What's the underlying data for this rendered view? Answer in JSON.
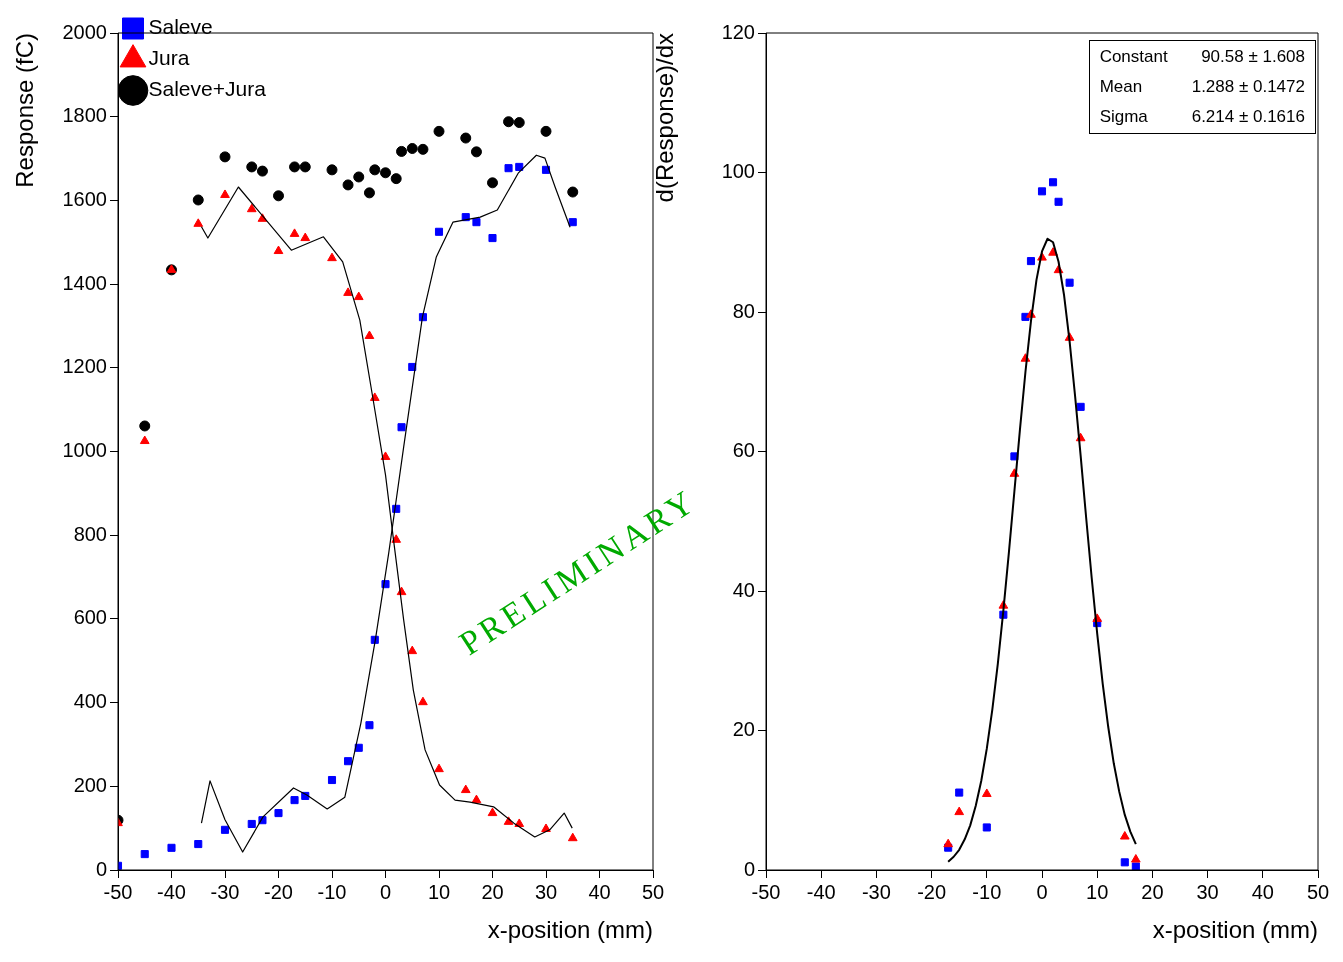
{
  "chart_data": [
    {
      "type": "scatter",
      "xlabel": "x-position (mm)",
      "ylabel": "Response (fC)",
      "xlim": [
        -50,
        50
      ],
      "xticks": [
        -50,
        -40,
        -30,
        -20,
        -10,
        0,
        10,
        20,
        30,
        40,
        50
      ],
      "ylim": [
        0,
        2000
      ],
      "yticks": [
        0,
        200,
        400,
        600,
        800,
        1000,
        1200,
        1400,
        1600,
        1800,
        2000
      ],
      "grid": false,
      "legend": "top left",
      "annotations": [
        "PRELIMINARY"
      ],
      "x": [
        -50,
        -45,
        -40,
        -35,
        -30,
        -25,
        -23,
        -20,
        -17,
        -15,
        -10,
        -7,
        -5,
        -3,
        -2,
        0,
        2,
        3,
        5,
        7,
        10,
        15,
        17,
        20,
        23,
        25,
        30,
        35
      ],
      "series": [
        {
          "name": "Saleve",
          "color": "#0000ff",
          "marker": "square",
          "values": [
            10,
            38,
            53,
            62,
            96,
            110,
            119,
            136,
            167,
            177,
            215,
            260,
            292,
            346,
            550,
            683,
            863,
            1058,
            1202,
            1321,
            1525,
            1560,
            1548,
            1510,
            1677,
            1680,
            1673,
            1548
          ]
        },
        {
          "name": "Jura",
          "color": "#ff0000",
          "marker": "triangle",
          "values": [
            112,
            1025,
            1434,
            1544,
            1613,
            1579,
            1556,
            1479,
            1520,
            1510,
            1462,
            1379,
            1369,
            1276,
            1128,
            987,
            789,
            664,
            523,
            401,
            241,
            191,
            167,
            136,
            115,
            110,
            98,
            76
          ]
        },
        {
          "name": "Saleve+Jura",
          "color": "#000000",
          "marker": "circle",
          "values": [
            119,
            1061,
            1434,
            1601,
            1704,
            1680,
            1670,
            1611,
            1680,
            1680,
            1673,
            1637,
            1656,
            1618,
            1673,
            1666,
            1652,
            1717,
            1724,
            1722,
            1765,
            1749,
            1716,
            1642,
            1788,
            1786,
            1765,
            1620
          ]
        },
        {
          "type": "line",
          "color": "#000000",
          "marker": "none",
          "line_style": "solid",
          "x": [
            -34.4,
            -32.8,
            -30,
            -26.7,
            -22.9,
            -17.2,
            -14.7,
            -10.9,
            -7.6,
            -4.6,
            -1.9,
            0.6,
            3.4,
            6.9,
            9.5,
            12.6,
            17.7,
            20.9,
            24.8,
            28.2,
            29.8,
            31.7,
            34.5
          ],
          "values": [
            112,
            213,
            120,
            43,
            127,
            196,
            179,
            146,
            174,
            351,
            550,
            757,
            1011,
            1321,
            1465,
            1548,
            1560,
            1577,
            1665,
            1708,
            1701,
            1632,
            1536
          ]
        },
        {
          "type": "line",
          "color": "#000000",
          "marker": "none",
          "line_style": "solid",
          "x": [
            -34.4,
            -33.2,
            -27.5,
            -17.6,
            -11.6,
            -8,
            -4.8,
            -2.3,
            0,
            1.5,
            3.4,
            5.2,
            7.4,
            10.1,
            13,
            15.8,
            20.2,
            24,
            27.9,
            30.7,
            33.4,
            34.9
          ],
          "values": [
            1537,
            1510,
            1632,
            1481,
            1513,
            1453,
            1314,
            1123,
            944,
            789,
            597,
            430,
            287,
            203,
            167,
            162,
            151,
            112,
            79,
            96,
            136,
            100
          ]
        }
      ]
    },
    {
      "type": "scatter",
      "xlabel": "x-position (mm)",
      "ylabel": "d(Response)/dx",
      "xlim": [
        -50,
        50
      ],
      "xticks": [
        -50,
        -40,
        -30,
        -20,
        -10,
        0,
        10,
        20,
        30,
        40,
        50
      ],
      "ylim": [
        0,
        120
      ],
      "yticks": [
        0,
        20,
        40,
        60,
        80,
        100,
        120
      ],
      "grid": false,
      "annotations": [
        "Constant",
        "90.58 ± 1.608",
        "Mean",
        "1.288 ± 0.1472",
        "Sigma",
        "6.214 ± 0.1616"
      ],
      "x": [
        -17,
        -15,
        -10,
        -7,
        -5,
        -3,
        -2,
        0,
        2,
        3,
        5,
        7,
        10,
        15,
        17
      ],
      "series": [
        {
          "color": "#ff0000",
          "marker": "triangle",
          "values": [
            3.7,
            8.3,
            10.9,
            37.9,
            56.8,
            73.3,
            79.6,
            87.8,
            88.5,
            86.0,
            76.3,
            61.9,
            36.0,
            4.8,
            1.5
          ]
        },
        {
          "color": "#0000ff",
          "marker": "square",
          "values": [
            3.2,
            11.1,
            6.1,
            36.6,
            59.3,
            79.3,
            87.3,
            97.3,
            98.6,
            95.8,
            84.2,
            66.4,
            35.4,
            1.1,
            0.5
          ]
        },
        {
          "type": "line",
          "color": "#000000",
          "marker": "none",
          "line_style": "solid",
          "x": [
            -17,
            -16,
            -15,
            -14,
            -13,
            -12,
            -11,
            -10,
            -9,
            -8,
            -7,
            -6,
            -5,
            -4,
            -3,
            -2,
            -1,
            0,
            1,
            2,
            3,
            4,
            5,
            6,
            7,
            8,
            9,
            10,
            11,
            12,
            13,
            14,
            15,
            16,
            17
          ],
          "values": [
            1.2,
            1.9,
            2.9,
            4.4,
            6.4,
            9.2,
            12.8,
            17.4,
            23.0,
            29.6,
            37.2,
            45.5,
            54.3,
            63.1,
            71.4,
            78.7,
            84.6,
            88.7,
            90.5,
            90.0,
            87.2,
            82.4,
            75.8,
            67.9,
            59.4,
            50.5,
            41.9,
            33.9,
            26.7,
            20.5,
            15.3,
            11.2,
            7.9,
            5.5,
            3.7
          ]
        }
      ]
    }
  ]
}
